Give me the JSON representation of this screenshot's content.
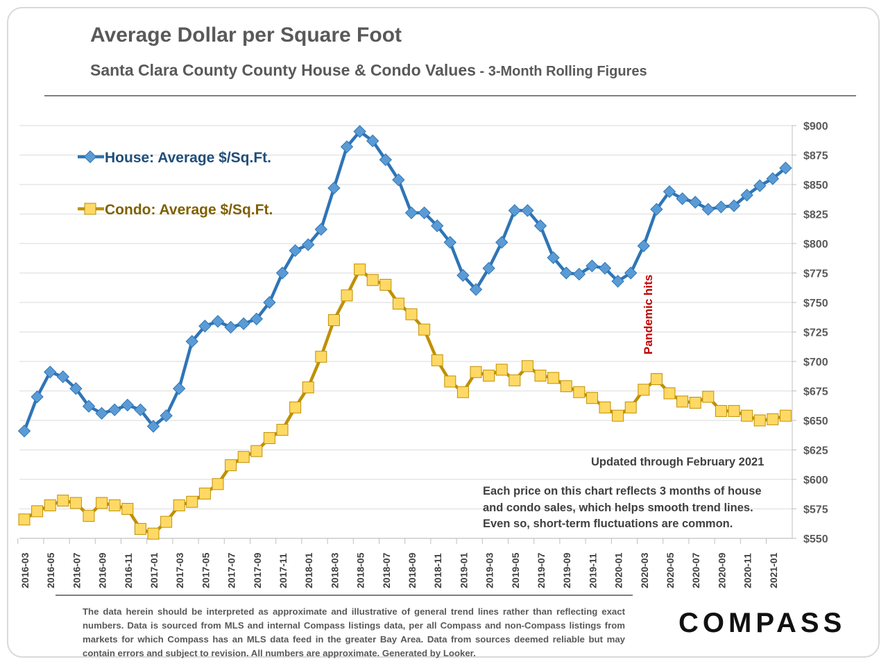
{
  "title": "Average Dollar per Square Foot",
  "subtitle": "Santa Clara County County House & Condo Values",
  "subtitle_suffix": " - 3-Month Rolling Figures",
  "updated": "Updated through February 2021",
  "note_lines": [
    "Each price on this chart reflects 3 months of house",
    "and condo sales, which helps smooth trend lines.",
    "Even so, short-term fluctuations are common."
  ],
  "disclaimer": "The data herein should be interpreted as approximate and illustrative of general trend lines rather than reflecting exact numbers. Data is sourced from MLS and internal Compass listings data, per all Compass and non-Compass listings from markets for which Compass has an MLS data feed in the greater Bay Area. Data from sources deemed reliable but may contain errors and subject to revision. All numbers are approximate. Generated by Looker.",
  "logo": "COMPASS",
  "chart_data": {
    "type": "line",
    "title": "Average Dollar per Square Foot",
    "ylim": [
      550,
      900
    ],
    "yticks": [
      550,
      575,
      600,
      625,
      650,
      675,
      700,
      725,
      750,
      775,
      800,
      825,
      850,
      875,
      900
    ],
    "ytick_labels": [
      "$550",
      "$575",
      "$600",
      "$625",
      "$650",
      "$675",
      "$700",
      "$725",
      "$750",
      "$775",
      "$800",
      "$825",
      "$850",
      "$875",
      "$900"
    ],
    "grid": true,
    "legend_placement": "top-left",
    "x": [
      "2016-03",
      "2016-04",
      "2016-05",
      "2016-06",
      "2016-07",
      "2016-08",
      "2016-09",
      "2016-10",
      "2016-11",
      "2016-12",
      "2017-01",
      "2017-02",
      "2017-03",
      "2017-04",
      "2017-05",
      "2017-06",
      "2017-07",
      "2017-08",
      "2017-09",
      "2017-10",
      "2017-11",
      "2017-12",
      "2018-01",
      "2018-02",
      "2018-03",
      "2018-04",
      "2018-05",
      "2018-06",
      "2018-07",
      "2018-08",
      "2018-09",
      "2018-10",
      "2018-11",
      "2018-12",
      "2019-01",
      "2019-02",
      "2019-03",
      "2019-04",
      "2019-05",
      "2019-06",
      "2019-07",
      "2019-08",
      "2019-09",
      "2019-10",
      "2019-11",
      "2019-12",
      "2020-01",
      "2020-02",
      "2020-03",
      "2020-04",
      "2020-05",
      "2020-06",
      "2020-07",
      "2020-08",
      "2020-09",
      "2020-10",
      "2020-11",
      "2020-12",
      "2021-01",
      "2021-02"
    ],
    "xtick_labels": [
      "2016-03",
      "2016-05",
      "2016-07",
      "2016-09",
      "2016-11",
      "2017-01",
      "2017-03",
      "2017-05",
      "2017-07",
      "2017-09",
      "2017-11",
      "2018-01",
      "2018-03",
      "2018-05",
      "2018-07",
      "2018-09",
      "2018-11",
      "2019-01",
      "2019-03",
      "2019-05",
      "2019-07",
      "2019-09",
      "2019-11",
      "2020-01",
      "2020-03",
      "2020-05",
      "2020-07",
      "2020-09",
      "2020-11",
      "2021-01"
    ],
    "series": [
      {
        "name": "House: Average $/Sq.Ft.",
        "color": "#2e75b6",
        "marker": "diamond",
        "marker_color": "#5b9bd5",
        "values": [
          641,
          670,
          691,
          687,
          677,
          662,
          656,
          659,
          663,
          659,
          645,
          654,
          677,
          717,
          730,
          734,
          729,
          732,
          736,
          750,
          775,
          794,
          799,
          812,
          847,
          882,
          895,
          887,
          871,
          854,
          826,
          826,
          815,
          801,
          773,
          761,
          779,
          801,
          828,
          828,
          815,
          788,
          775,
          774,
          781,
          779,
          768,
          775,
          798,
          829,
          844,
          838,
          835,
          829,
          831,
          832,
          841,
          849,
          855,
          864
        ]
      },
      {
        "name": "Condo: Average $/Sq.Ft.",
        "color": "#bf9000",
        "marker": "square",
        "marker_color": "#ffd966",
        "values": [
          566,
          573,
          578,
          582,
          580,
          569,
          580,
          578,
          575,
          558,
          554,
          564,
          578,
          581,
          588,
          596,
          612,
          619,
          624,
          635,
          642,
          661,
          678,
          704,
          735,
          756,
          778,
          769,
          765,
          749,
          740,
          727,
          701,
          683,
          674,
          691,
          688,
          693,
          684,
          696,
          688,
          686,
          679,
          674,
          669,
          661,
          654,
          661,
          676,
          685,
          673,
          666,
          665,
          670,
          658,
          658,
          654,
          650,
          651,
          654
        ]
      }
    ],
    "annotations": [
      {
        "text": "Pandemic hits",
        "x": "2020-03",
        "color": "#c00000"
      }
    ]
  }
}
